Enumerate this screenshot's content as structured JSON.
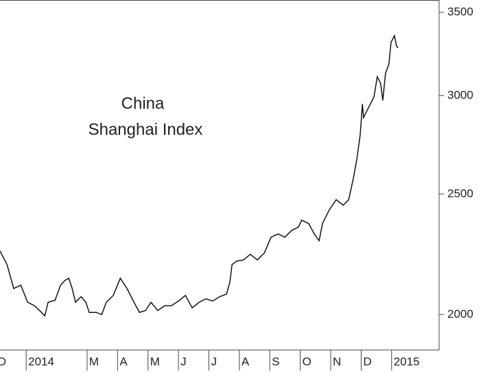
{
  "chart_data": {
    "type": "line",
    "title": [
      "China",
      "Shanghai Index"
    ],
    "log_scale": true,
    "x": [
      -0.86,
      -0.63,
      -0.41,
      -0.18,
      0.05,
      0.27,
      0.5,
      0.61,
      0.72,
      0.95,
      1.13,
      1.28,
      1.4,
      1.51,
      1.62,
      1.8,
      1.96,
      2.07,
      2.3,
      2.48,
      2.63,
      2.86,
      3.09,
      3.31,
      3.54,
      3.72,
      3.92,
      4.1,
      4.32,
      4.55,
      4.77,
      5.0,
      5.23,
      5.45,
      5.68,
      5.9,
      6.13,
      6.35,
      6.58,
      6.69,
      6.76,
      6.91,
      7.14,
      7.36,
      7.59,
      7.82,
      8.04,
      8.27,
      8.49,
      8.72,
      8.94,
      9.05,
      9.28,
      9.46,
      9.62,
      9.73,
      9.95,
      10.18,
      10.41,
      10.59,
      10.74,
      10.86,
      10.97,
      11.04,
      11.08,
      11.19,
      11.42,
      11.53,
      11.64,
      11.71,
      11.8,
      11.91,
      11.98,
      12.09,
      12.16,
      12.21
    ],
    "series": [
      {
        "color": "#111111",
        "values": [
          2250,
          2194,
          2099,
          2112,
          2046,
          2033,
          2008,
          1995,
          2046,
          2054,
          2112,
          2131,
          2139,
          2099,
          2046,
          2067,
          2046,
          2008,
          2008,
          2000,
          2046,
          2072,
          2139,
          2099,
          2046,
          2008,
          2015,
          2046,
          2015,
          2033,
          2033,
          2051,
          2072,
          2025,
          2046,
          2059,
          2051,
          2067,
          2077,
          2125,
          2194,
          2208,
          2213,
          2236,
          2213,
          2241,
          2308,
          2322,
          2308,
          2337,
          2352,
          2382,
          2367,
          2322,
          2293,
          2367,
          2427,
          2474,
          2449,
          2474,
          2570,
          2669,
          2790,
          2954,
          2880,
          2917,
          2992,
          3107,
          3068,
          2973,
          3127,
          3179,
          3310,
          3352,
          3289,
          3277
        ]
      }
    ],
    "xlim": [
      -0.86,
      13.56
    ],
    "xticks": [
      {
        "value": -1,
        "label": "D"
      },
      {
        "value": 0,
        "label": "2014"
      },
      {
        "value": 2,
        "label": "M"
      },
      {
        "value": 3,
        "label": "A"
      },
      {
        "value": 4,
        "label": "M"
      },
      {
        "value": 5,
        "label": "J"
      },
      {
        "value": 6,
        "label": "J"
      },
      {
        "value": 7,
        "label": "A"
      },
      {
        "value": 8,
        "label": "S"
      },
      {
        "value": 9,
        "label": "O"
      },
      {
        "value": 10,
        "label": "N"
      },
      {
        "value": 11,
        "label": "D"
      },
      {
        "value": 12,
        "label": "2015"
      }
    ],
    "ylim": [
      1873,
      3581
    ],
    "yticks": [
      2000,
      2500,
      3000,
      3500
    ]
  }
}
